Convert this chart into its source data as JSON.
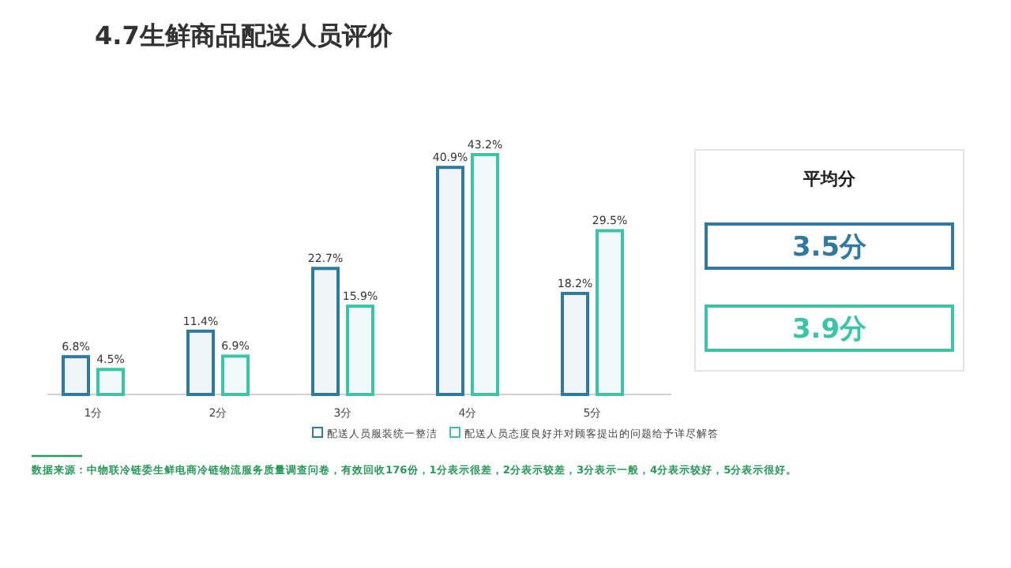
{
  "chart_data": [
    {
      "type": "bar",
      "title": "4.7生鲜商品配送人员评价",
      "categories": [
        "1分",
        "2分",
        "3分",
        "4分",
        "5分"
      ],
      "series": [
        {
          "name": "配送人员服装统一整洁",
          "color": "#2f7a9e",
          "values": [
            6.8,
            11.4,
            22.7,
            40.9,
            18.2
          ],
          "value_labels": [
            "6.8%",
            "11.4%",
            "22.7%",
            "40.9%",
            "18.2%"
          ]
        },
        {
          "name": "配送人员态度良好并对顾客提出的问题给予详尽解答",
          "color": "#3cc4a8",
          "values": [
            4.5,
            6.9,
            15.9,
            43.2,
            29.5
          ],
          "value_labels": [
            "4.5%",
            "6.9%",
            "15.9%",
            "43.2%",
            "29.5%"
          ]
        }
      ],
      "legend": "bottom",
      "annotations": [
        "数据来源：中物联冷链委生鲜电商冷链物流服务质量调查问卷，有效回收176份，1分表示很差，2分表示较差，3分表示一般，4分表示较好，5分表示很好。"
      ]
    },
    {
      "type": "other",
      "title": "平均分",
      "annotations": [
        "3.5分",
        "3.9分"
      ],
      "colors": [
        "#2f7a9e",
        "#3cc4a8"
      ]
    }
  ]
}
